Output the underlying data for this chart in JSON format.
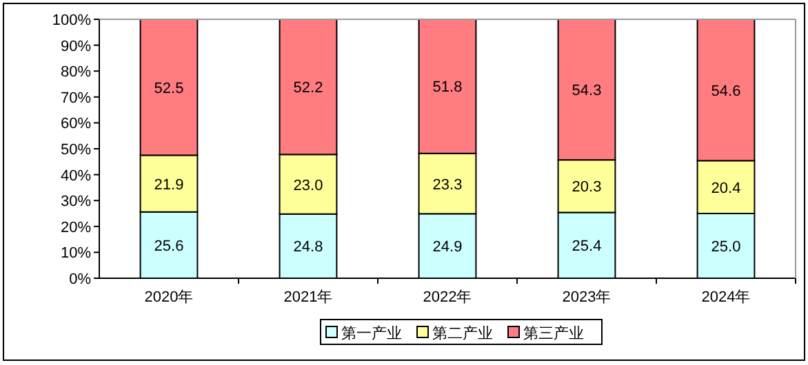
{
  "chart_data": {
    "type": "bar",
    "stacked": true,
    "categories": [
      "2020年",
      "2021年",
      "2022年",
      "2023年",
      "2024年"
    ],
    "series": [
      {
        "name": "第一产业",
        "color": "#ccffff",
        "values": [
          25.6,
          24.8,
          24.9,
          25.4,
          25.0
        ],
        "value_labels": [
          "25.6",
          "24.8",
          "24.9",
          "25.4",
          "25.0"
        ]
      },
      {
        "name": "第二产业",
        "color": "#ffff99",
        "values": [
          21.9,
          23.0,
          23.3,
          20.3,
          20.4
        ],
        "value_labels": [
          "21.9",
          "23.0",
          "23.3",
          "20.3",
          "20.4"
        ]
      },
      {
        "name": "第三产业",
        "color": "#ff7c80",
        "values": [
          52.5,
          52.2,
          51.8,
          54.3,
          54.6
        ],
        "value_labels": [
          "52.5",
          "52.2",
          "51.8",
          "54.3",
          "54.6"
        ]
      }
    ],
    "ylim": [
      0,
      100
    ],
    "yticks": [
      {
        "value": 0,
        "label": "0%"
      },
      {
        "value": 10,
        "label": "10%"
      },
      {
        "value": 20,
        "label": "20%"
      },
      {
        "value": 30,
        "label": "30%"
      },
      {
        "value": 40,
        "label": "40%"
      },
      {
        "value": 50,
        "label": "50%"
      },
      {
        "value": 60,
        "label": "60%"
      },
      {
        "value": 70,
        "label": "70%"
      },
      {
        "value": 80,
        "label": "80%"
      },
      {
        "value": 90,
        "label": "90%"
      },
      {
        "value": 100,
        "label": "100%"
      }
    ],
    "legend": "bottom"
  }
}
